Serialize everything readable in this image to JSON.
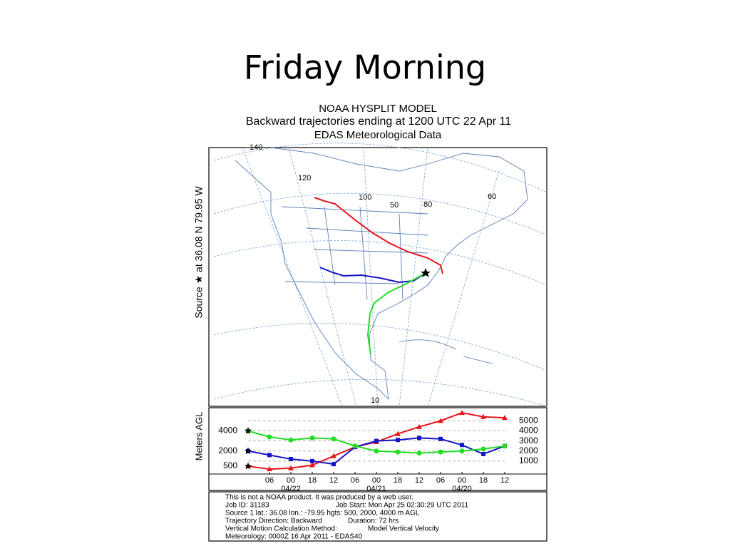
{
  "slide_title": "Friday Morning",
  "map": {
    "title_lines": [
      "NOAA HYSPLIT MODEL",
      "Backward trajectories ending at 1200 UTC 22 Apr 11",
      "EDAS Meteorological Data"
    ],
    "source_label": "Source ★ at 36.08 N 79.95 W",
    "grid_labels": [
      "140",
      "120",
      "100",
      "50",
      "80",
      "60",
      "10"
    ]
  },
  "chart_data": {
    "type": "line",
    "y_axis_label": "Meters AGL",
    "x": [
      0,
      6,
      12,
      18,
      24,
      30,
      36,
      42,
      48,
      54,
      60,
      66,
      72
    ],
    "xlim": [
      -11,
      83.8
    ],
    "xticks": [
      {
        "value": 6,
        "label": "06"
      },
      {
        "value": 12,
        "label": "00"
      },
      {
        "value": 18,
        "label": "18"
      },
      {
        "value": 24,
        "label": "12"
      },
      {
        "value": 30,
        "label": "06"
      },
      {
        "value": 36,
        "label": "00"
      },
      {
        "value": 42,
        "label": "18"
      },
      {
        "value": 48,
        "label": "12"
      },
      {
        "value": 54,
        "label": "06"
      },
      {
        "value": 60,
        "label": "00"
      },
      {
        "value": 66,
        "label": "18"
      },
      {
        "value": 72,
        "label": "12"
      }
    ],
    "x_date_labels": [
      {
        "value": 12,
        "label": "04/22"
      },
      {
        "value": 36,
        "label": "04/21"
      },
      {
        "value": 60,
        "label": "04/20"
      }
    ],
    "ylim": [
      0,
      6300
    ],
    "yticks": [
      1000,
      2000,
      3000,
      4000,
      5000
    ],
    "grid": true,
    "series": [
      {
        "color": "#e8141c",
        "marker": "triangle",
        "values": [
          500,
          200,
          300,
          600,
          1500,
          2400,
          2900,
          3700,
          4400,
          5000,
          5800,
          5400,
          5300
        ]
      },
      {
        "color": "#1414c8",
        "marker": "square",
        "values": [
          2000,
          1600,
          1200,
          1000,
          700,
          2400,
          3000,
          3100,
          3300,
          3200,
          2600,
          1700,
          2500
        ]
      },
      {
        "color": "#22dd22",
        "marker": "circle",
        "values": [
          4000,
          3400,
          3100,
          3300,
          3200,
          2500,
          2000,
          1900,
          1800,
          1900,
          2000,
          2200,
          2500
        ]
      }
    ]
  },
  "footer": {
    "lines": [
      [
        "This is not a NOAA product. It was produced by a web user."
      ],
      [
        "Job ID: 31183",
        "Job Start: Mon Apr 25 02:30:29 UTC 2011"
      ],
      [
        "Source 1 lat.: 36.08  lon.: -79.95  hgts: 500, 2000, 4000 m AGL"
      ],
      [
        "Trajectory Direction: Backward",
        "Duration: 72 hrs"
      ],
      [
        "Vertical Motion Calculation Method:",
        "Model Vertical Velocity"
      ],
      [
        "Meteorology: 0000Z 16 Apr 2011 - EDAS40"
      ]
    ]
  }
}
